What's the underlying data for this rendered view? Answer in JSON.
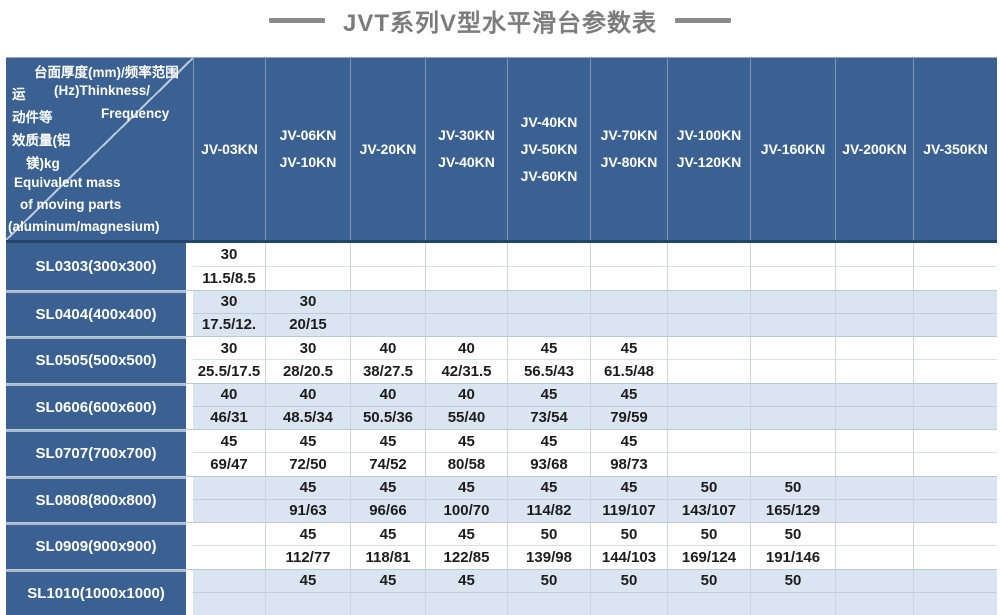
{
  "title": "JVT系列V型水平滑台参数表",
  "colors": {
    "header_blue": "#3a6191",
    "row_alt_blue": "#dbe5f1",
    "row_white": "#ffffff",
    "title_gray": "#7c7c7c",
    "data_text": "#1c1c1c"
  },
  "corner": {
    "lines": [
      {
        "left": "台面厚度(mm)/频率范围",
        "right": ""
      },
      {
        "left": "运",
        "right": "(Hz)Thinkness/"
      },
      {
        "left": "动件等",
        "right": "Frequency"
      },
      {
        "left": "效质量(铝",
        "right": ""
      },
      {
        "left": "镁)kg",
        "right": ""
      },
      {
        "left": "Equivalent mass",
        "right": ""
      },
      {
        "left": "of moving parts",
        "right": ""
      },
      {
        "left": "(aluminum/magnesium)",
        "right": ""
      }
    ]
  },
  "columns": [
    "JV-03KN",
    "JV-06KN\nJV-10KN",
    "JV-20KN",
    "JV-30KN\nJV-40KN",
    "JV-40KN\nJV-50KN\nJV-60KN",
    "JV-70KN\nJV-80KN",
    "JV-100KN\nJV-120KN",
    "JV-160KN",
    "JV-200KN",
    "JV-350KN"
  ],
  "rows": [
    {
      "label": "SL0303(300x300)",
      "cells": [
        {
          "top": "30",
          "bottom": "11.5/8.5"
        },
        {
          "top": "",
          "bottom": ""
        },
        {
          "top": "",
          "bottom": ""
        },
        {
          "top": "",
          "bottom": ""
        },
        {
          "top": "",
          "bottom": ""
        },
        {
          "top": "",
          "bottom": ""
        },
        {
          "top": "",
          "bottom": ""
        },
        {
          "top": "",
          "bottom": ""
        },
        {
          "top": "",
          "bottom": ""
        },
        {
          "top": "",
          "bottom": ""
        }
      ]
    },
    {
      "label": "SL0404(400x400)",
      "cells": [
        {
          "top": "30",
          "bottom": "17.5/12."
        },
        {
          "top": "30",
          "bottom": "20/15"
        },
        {
          "top": "",
          "bottom": ""
        },
        {
          "top": "",
          "bottom": ""
        },
        {
          "top": "",
          "bottom": ""
        },
        {
          "top": "",
          "bottom": ""
        },
        {
          "top": "",
          "bottom": ""
        },
        {
          "top": "",
          "bottom": ""
        },
        {
          "top": "",
          "bottom": ""
        },
        {
          "top": "",
          "bottom": ""
        }
      ]
    },
    {
      "label": "SL0505(500x500)",
      "cells": [
        {
          "top": "30",
          "bottom": "25.5/17.5"
        },
        {
          "top": "30",
          "bottom": "28/20.5"
        },
        {
          "top": "40",
          "bottom": "38/27.5"
        },
        {
          "top": "40",
          "bottom": "42/31.5"
        },
        {
          "top": "45",
          "bottom": "56.5/43"
        },
        {
          "top": "45",
          "bottom": "61.5/48"
        },
        {
          "top": "",
          "bottom": ""
        },
        {
          "top": "",
          "bottom": ""
        },
        {
          "top": "",
          "bottom": ""
        },
        {
          "top": "",
          "bottom": ""
        }
      ]
    },
    {
      "label": "SL0606(600x600)",
      "cells": [
        {
          "top": "40",
          "bottom": "46/31"
        },
        {
          "top": "40",
          "bottom": "48.5/34"
        },
        {
          "top": "40",
          "bottom": "50.5/36"
        },
        {
          "top": "40",
          "bottom": "55/40"
        },
        {
          "top": "45",
          "bottom": "73/54"
        },
        {
          "top": "45",
          "bottom": "79/59"
        },
        {
          "top": "",
          "bottom": ""
        },
        {
          "top": "",
          "bottom": ""
        },
        {
          "top": "",
          "bottom": ""
        },
        {
          "top": "",
          "bottom": ""
        }
      ]
    },
    {
      "label": "SL0707(700x700)",
      "cells": [
        {
          "top": "45",
          "bottom": "69/47"
        },
        {
          "top": "45",
          "bottom": "72/50"
        },
        {
          "top": "45",
          "bottom": "74/52"
        },
        {
          "top": "45",
          "bottom": "80/58"
        },
        {
          "top": "45",
          "bottom": "93/68"
        },
        {
          "top": "45",
          "bottom": "98/73"
        },
        {
          "top": "",
          "bottom": ""
        },
        {
          "top": "",
          "bottom": ""
        },
        {
          "top": "",
          "bottom": ""
        },
        {
          "top": "",
          "bottom": ""
        }
      ]
    },
    {
      "label": "SL0808(800x800)",
      "cells": [
        {
          "top": "",
          "bottom": ""
        },
        {
          "top": "45",
          "bottom": "91/63"
        },
        {
          "top": "45",
          "bottom": "96/66"
        },
        {
          "top": "45",
          "bottom": "100/70"
        },
        {
          "top": "45",
          "bottom": "114/82"
        },
        {
          "top": "45",
          "bottom": "119/107"
        },
        {
          "top": "50",
          "bottom": "143/107"
        },
        {
          "top": "50",
          "bottom": "165/129"
        },
        {
          "top": "",
          "bottom": ""
        },
        {
          "top": "",
          "bottom": ""
        }
      ]
    },
    {
      "label": "SL0909(900x900)",
      "cells": [
        {
          "top": "",
          "bottom": ""
        },
        {
          "top": "45",
          "bottom": "112/77"
        },
        {
          "top": "45",
          "bottom": "118/81"
        },
        {
          "top": "45",
          "bottom": "122/85"
        },
        {
          "top": "50",
          "bottom": "139/98"
        },
        {
          "top": "50",
          "bottom": "144/103"
        },
        {
          "top": "50",
          "bottom": "169/124"
        },
        {
          "top": "50",
          "bottom": "191/146"
        },
        {
          "top": "",
          "bottom": ""
        },
        {
          "top": "",
          "bottom": ""
        }
      ]
    },
    {
      "label": "SL1010(1000x1000)",
      "cells": [
        {
          "top": "",
          "bottom": ""
        },
        {
          "top": "45",
          "bottom": ""
        },
        {
          "top": "45",
          "bottom": ""
        },
        {
          "top": "45",
          "bottom": ""
        },
        {
          "top": "50",
          "bottom": ""
        },
        {
          "top": "50",
          "bottom": ""
        },
        {
          "top": "50",
          "bottom": ""
        },
        {
          "top": "50",
          "bottom": ""
        },
        {
          "top": "",
          "bottom": ""
        },
        {
          "top": "",
          "bottom": ""
        }
      ]
    }
  ]
}
